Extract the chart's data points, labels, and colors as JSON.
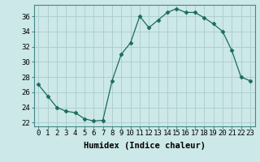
{
  "x": [
    0,
    1,
    2,
    3,
    4,
    5,
    6,
    7,
    8,
    9,
    10,
    11,
    12,
    13,
    14,
    15,
    16,
    17,
    18,
    19,
    20,
    21,
    22,
    23
  ],
  "y": [
    27.0,
    25.5,
    24.0,
    23.5,
    23.3,
    22.5,
    22.2,
    22.3,
    27.5,
    31.0,
    32.5,
    36.0,
    34.5,
    35.5,
    36.5,
    37.0,
    36.5,
    36.5,
    35.8,
    35.0,
    34.0,
    31.5,
    28.0,
    27.5
  ],
  "xlim": [
    -0.5,
    23.5
  ],
  "ylim": [
    21.5,
    37.5
  ],
  "yticks": [
    22,
    24,
    26,
    28,
    30,
    32,
    34,
    36
  ],
  "xticks": [
    0,
    1,
    2,
    3,
    4,
    5,
    6,
    7,
    8,
    9,
    10,
    11,
    12,
    13,
    14,
    15,
    16,
    17,
    18,
    19,
    20,
    21,
    22,
    23
  ],
  "xlabel": "Humidex (Indice chaleur)",
  "line_color": "#1a6b5a",
  "marker": "D",
  "marker_size": 2.5,
  "bg_color": "#cce8e8",
  "grid_color": "#aacccc",
  "label_fontsize": 7.5,
  "tick_fontsize": 6.5
}
